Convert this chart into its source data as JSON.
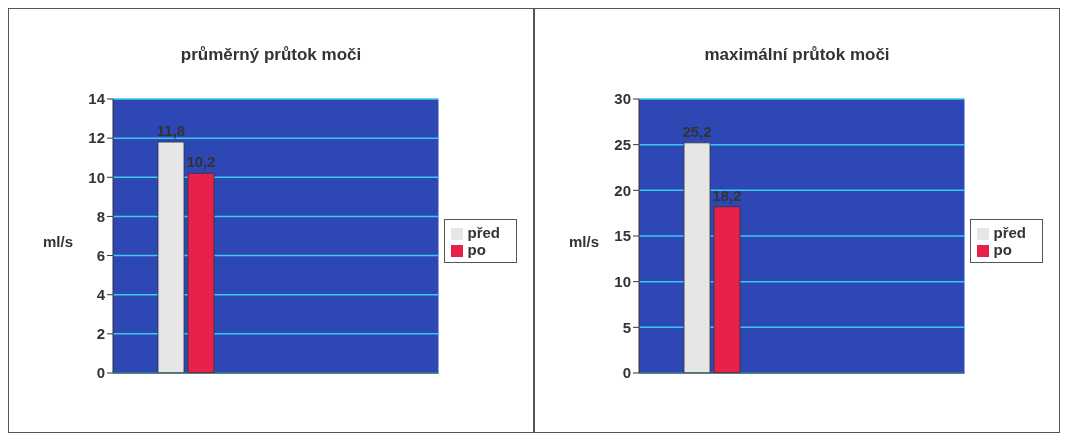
{
  "chart_data": [
    {
      "type": "bar",
      "title": "průměrný průtok moči",
      "ylabel": "ml/s",
      "categories": [
        null
      ],
      "series": [
        {
          "name": "před",
          "color": "#e6e6e6",
          "values": [
            11.8
          ],
          "value_labels": [
            "11,8"
          ]
        },
        {
          "name": "po",
          "color": "#e8214b",
          "values": [
            10.2
          ],
          "value_labels": [
            "10,2"
          ]
        }
      ],
      "ylim": [
        0,
        14
      ],
      "yticks": [
        0,
        2,
        4,
        6,
        8,
        10,
        12,
        14
      ],
      "grid": "y",
      "legend": "right"
    },
    {
      "type": "bar",
      "title": "maximální průtok moči",
      "ylabel": "ml/s",
      "categories": [
        null
      ],
      "series": [
        {
          "name": "před",
          "color": "#e6e6e6",
          "values": [
            25.2
          ],
          "value_labels": [
            "25,2"
          ]
        },
        {
          "name": "po",
          "color": "#e8214b",
          "values": [
            18.2
          ],
          "value_labels": [
            "18,2"
          ]
        }
      ],
      "ylim": [
        0,
        30
      ],
      "yticks": [
        0,
        5,
        10,
        15,
        20,
        25,
        30
      ],
      "grid": "y",
      "legend": "right"
    }
  ]
}
